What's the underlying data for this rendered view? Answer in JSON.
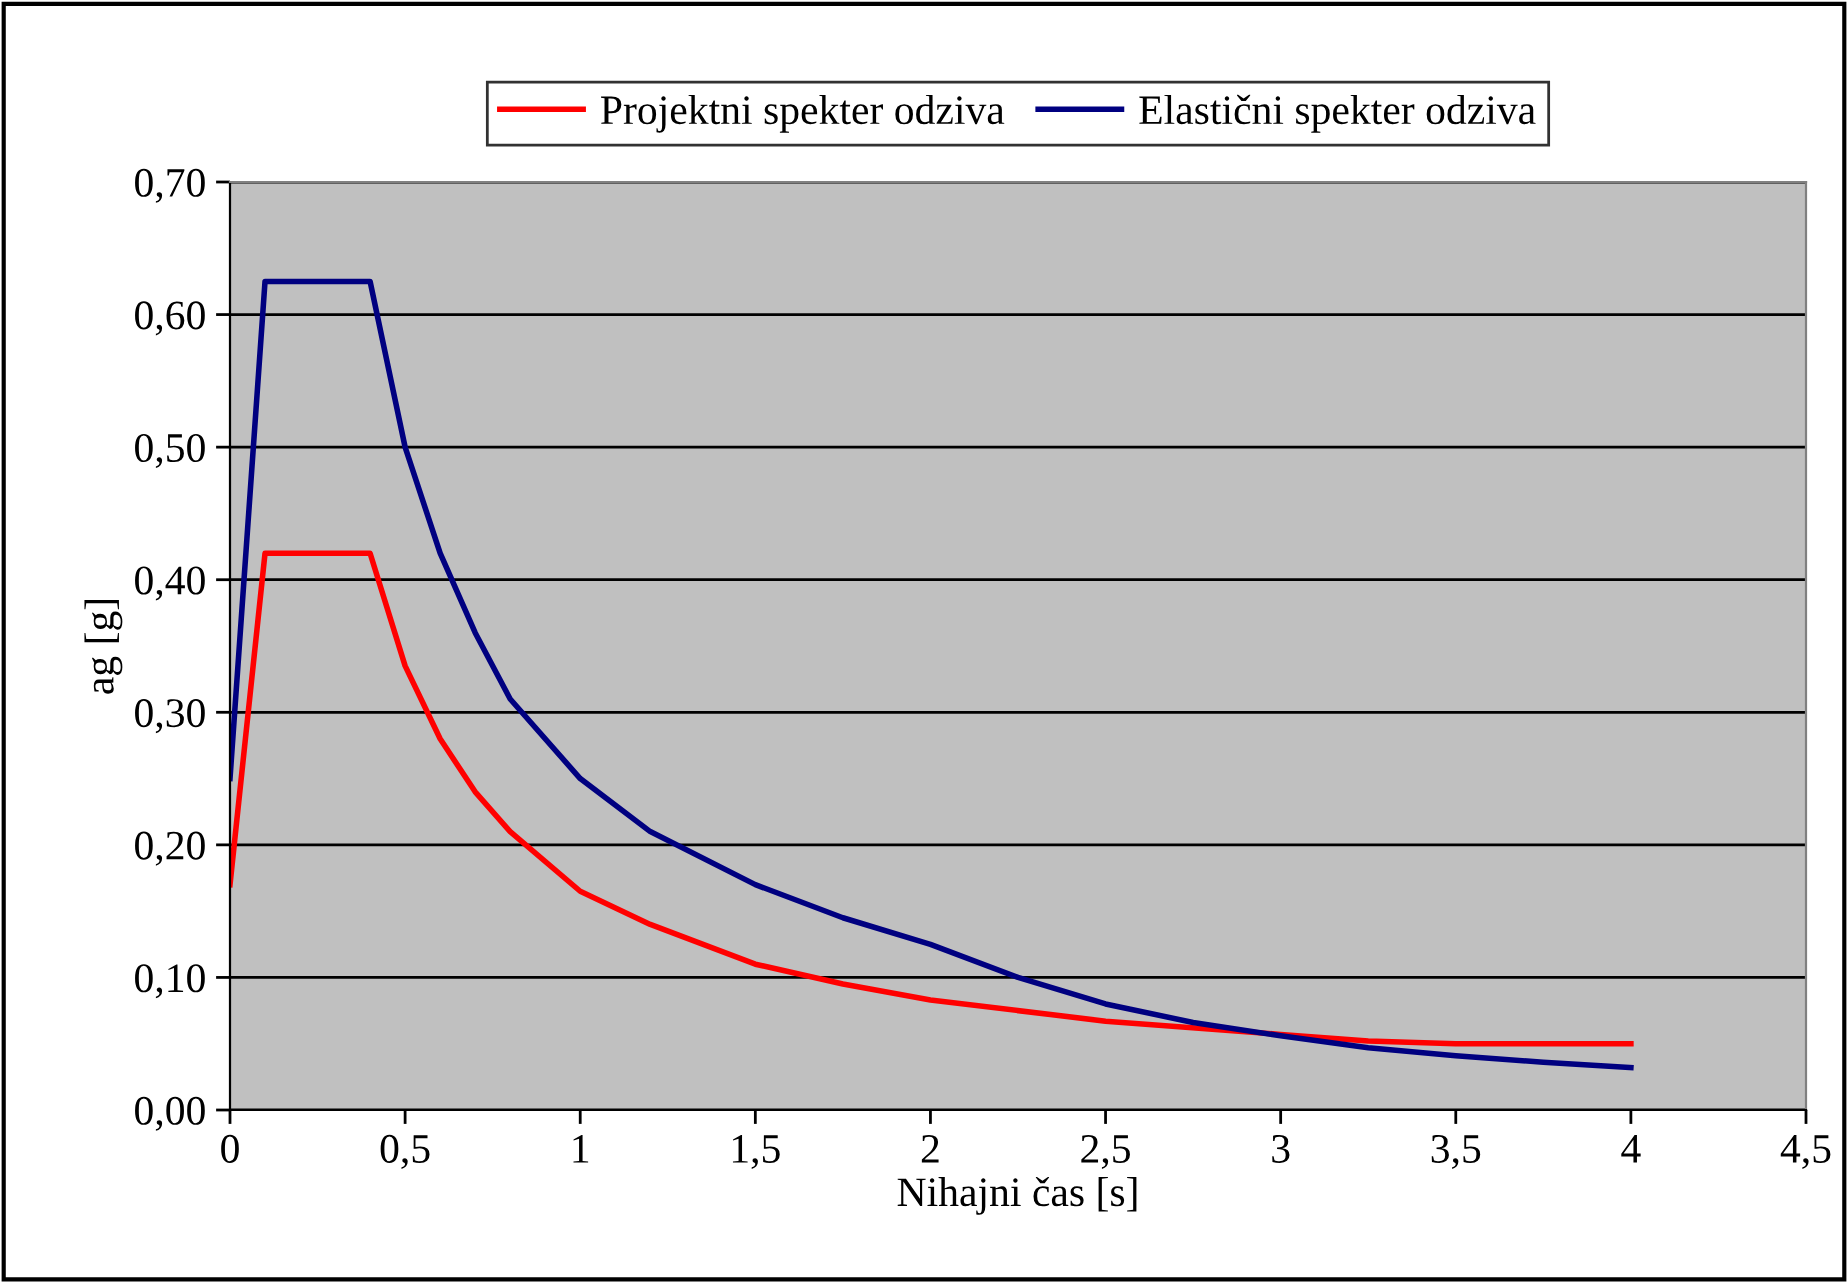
{
  "chart_data": {
    "type": "line",
    "xlabel": "Nihajni čas [s]",
    "ylabel": "ag [g]",
    "series": [
      {
        "name": "Projektni spekter odziva",
        "color": "#ff0000",
        "x": [
          0,
          0.1,
          0.4,
          0.5,
          0.6,
          0.7,
          0.8,
          1.0,
          1.2,
          1.5,
          1.75,
          2.0,
          2.5,
          3.0,
          3.25,
          3.5,
          4.0
        ],
        "values": [
          0.17,
          0.42,
          0.42,
          0.335,
          0.28,
          0.24,
          0.21,
          0.165,
          0.14,
          0.11,
          0.095,
          0.083,
          0.067,
          0.057,
          0.052,
          0.05,
          0.05
        ]
      },
      {
        "name": "Elastični spekter odziva",
        "color": "#000080",
        "x": [
          0,
          0.1,
          0.4,
          0.5,
          0.6,
          0.7,
          0.8,
          1.0,
          1.2,
          1.5,
          1.75,
          2.0,
          2.25,
          2.5,
          2.75,
          3.0,
          3.25,
          3.5,
          3.75,
          4.0
        ],
        "values": [
          0.25,
          0.625,
          0.625,
          0.5,
          0.42,
          0.36,
          0.31,
          0.25,
          0.21,
          0.17,
          0.145,
          0.125,
          0.1,
          0.08,
          0.066,
          0.056,
          0.047,
          0.041,
          0.036,
          0.032
        ]
      }
    ],
    "xlim": [
      0,
      4.5
    ],
    "xticks": [
      0,
      {
        "value": 0.5,
        "label": "0,5"
      },
      1,
      {
        "value": 1.5,
        "label": "1,5"
      },
      2,
      {
        "value": 2.5,
        "label": "2,5"
      },
      3,
      {
        "value": 3.5,
        "label": "3,5"
      },
      4,
      {
        "value": 4.5,
        "label": "4,5"
      }
    ],
    "ylim": [
      0,
      0.7
    ],
    "yticks": [
      {
        "value": 0,
        "label": "0,00"
      },
      {
        "value": 0.1,
        "label": "0,10"
      },
      {
        "value": 0.2,
        "label": "0,20"
      },
      {
        "value": 0.3,
        "label": "0,30"
      },
      {
        "value": 0.4,
        "label": "0,40"
      },
      {
        "value": 0.5,
        "label": "0,50"
      },
      {
        "value": 0.6,
        "label": "0,60"
      },
      {
        "value": 0.7,
        "label": "0,70"
      }
    ],
    "grid": "y",
    "legend": "top",
    "marker": "none",
    "line_style": "solid"
  }
}
